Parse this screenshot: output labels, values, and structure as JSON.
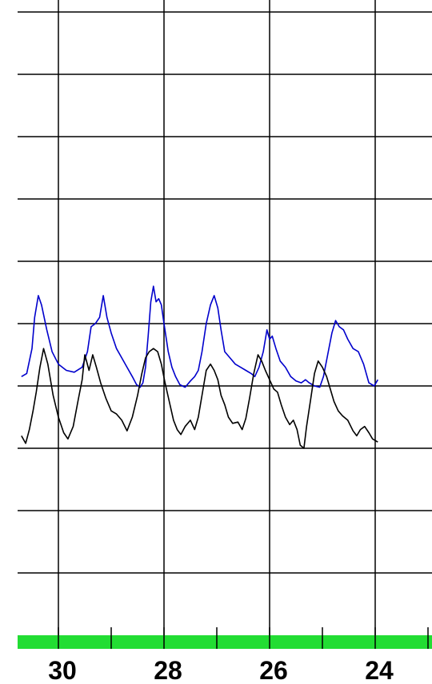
{
  "chart_data": {
    "type": "line",
    "title": "",
    "xlabel": "",
    "ylabel": "",
    "x_ticks": [
      30,
      28,
      26,
      24
    ],
    "x_axis_reversed": true,
    "grid": true,
    "colors": {
      "series_blue": "#0000cc",
      "series_black": "#000000",
      "grid": "#000000",
      "axis_bar": "#22dd33"
    },
    "series": [
      {
        "color": "#0000cc",
        "points": [
          [
            30.7,
            4.15
          ],
          [
            30.6,
            4.2
          ],
          [
            30.5,
            4.6
          ],
          [
            30.45,
            5.1
          ],
          [
            30.38,
            5.45
          ],
          [
            30.32,
            5.3
          ],
          [
            30.22,
            4.9
          ],
          [
            30.12,
            4.55
          ],
          [
            30.0,
            4.35
          ],
          [
            29.85,
            4.25
          ],
          [
            29.7,
            4.22
          ],
          [
            29.55,
            4.3
          ],
          [
            29.45,
            4.55
          ],
          [
            29.38,
            4.95
          ],
          [
            29.3,
            5.0
          ],
          [
            29.22,
            5.1
          ],
          [
            29.15,
            5.45
          ],
          [
            29.08,
            5.1
          ],
          [
            29.0,
            4.85
          ],
          [
            28.9,
            4.6
          ],
          [
            28.8,
            4.45
          ],
          [
            28.7,
            4.3
          ],
          [
            28.6,
            4.15
          ],
          [
            28.52,
            4.02
          ],
          [
            28.45,
            3.98
          ],
          [
            28.4,
            4.05
          ],
          [
            28.35,
            4.3
          ],
          [
            28.3,
            4.8
          ],
          [
            28.25,
            5.35
          ],
          [
            28.2,
            5.6
          ],
          [
            28.15,
            5.35
          ],
          [
            28.1,
            5.4
          ],
          [
            28.05,
            5.3
          ],
          [
            28.0,
            5.0
          ],
          [
            27.92,
            4.55
          ],
          [
            27.85,
            4.3
          ],
          [
            27.78,
            4.15
          ],
          [
            27.7,
            4.02
          ],
          [
            27.6,
            3.98
          ],
          [
            27.5,
            4.08
          ],
          [
            27.42,
            4.15
          ],
          [
            27.35,
            4.25
          ],
          [
            27.28,
            4.55
          ],
          [
            27.2,
            5.0
          ],
          [
            27.12,
            5.3
          ],
          [
            27.05,
            5.45
          ],
          [
            26.98,
            5.25
          ],
          [
            26.92,
            4.9
          ],
          [
            26.85,
            4.55
          ],
          [
            26.75,
            4.45
          ],
          [
            26.65,
            4.35
          ],
          [
            26.55,
            4.3
          ],
          [
            26.45,
            4.25
          ],
          [
            26.35,
            4.2
          ],
          [
            26.28,
            4.15
          ],
          [
            26.2,
            4.3
          ],
          [
            26.12,
            4.55
          ],
          [
            26.05,
            4.9
          ],
          [
            26.0,
            4.75
          ],
          [
            25.95,
            4.8
          ],
          [
            25.88,
            4.6
          ],
          [
            25.8,
            4.4
          ],
          [
            25.7,
            4.3
          ],
          [
            25.6,
            4.15
          ],
          [
            25.5,
            4.08
          ],
          [
            25.4,
            4.05
          ],
          [
            25.32,
            4.1
          ],
          [
            25.25,
            4.05
          ],
          [
            25.15,
            4.0
          ],
          [
            25.05,
            3.98
          ],
          [
            24.98,
            4.15
          ],
          [
            24.9,
            4.5
          ],
          [
            24.82,
            4.85
          ],
          [
            24.75,
            5.05
          ],
          [
            24.68,
            4.95
          ],
          [
            24.6,
            4.9
          ],
          [
            24.52,
            4.75
          ],
          [
            24.42,
            4.6
          ],
          [
            24.32,
            4.55
          ],
          [
            24.22,
            4.35
          ],
          [
            24.12,
            4.05
          ],
          [
            24.02,
            4.0
          ],
          [
            23.95,
            4.1
          ]
        ]
      },
      {
        "color": "#000000",
        "points": [
          [
            30.7,
            3.2
          ],
          [
            30.62,
            3.08
          ],
          [
            30.55,
            3.3
          ],
          [
            30.48,
            3.6
          ],
          [
            30.42,
            3.9
          ],
          [
            30.35,
            4.3
          ],
          [
            30.28,
            4.6
          ],
          [
            30.2,
            4.35
          ],
          [
            30.1,
            3.85
          ],
          [
            30.0,
            3.5
          ],
          [
            29.9,
            3.25
          ],
          [
            29.82,
            3.15
          ],
          [
            29.72,
            3.35
          ],
          [
            29.62,
            3.8
          ],
          [
            29.55,
            4.1
          ],
          [
            29.5,
            4.5
          ],
          [
            29.42,
            4.25
          ],
          [
            29.35,
            4.5
          ],
          [
            29.28,
            4.3
          ],
          [
            29.2,
            4.05
          ],
          [
            29.1,
            3.8
          ],
          [
            29.0,
            3.6
          ],
          [
            28.9,
            3.55
          ],
          [
            28.8,
            3.45
          ],
          [
            28.7,
            3.28
          ],
          [
            28.6,
            3.5
          ],
          [
            28.5,
            3.85
          ],
          [
            28.42,
            4.2
          ],
          [
            28.35,
            4.45
          ],
          [
            28.28,
            4.55
          ],
          [
            28.2,
            4.6
          ],
          [
            28.12,
            4.55
          ],
          [
            28.05,
            4.35
          ],
          [
            27.98,
            4.05
          ],
          [
            27.9,
            3.75
          ],
          [
            27.82,
            3.45
          ],
          [
            27.75,
            3.3
          ],
          [
            27.68,
            3.22
          ],
          [
            27.6,
            3.35
          ],
          [
            27.5,
            3.45
          ],
          [
            27.42,
            3.3
          ],
          [
            27.35,
            3.5
          ],
          [
            27.28,
            3.85
          ],
          [
            27.2,
            4.25
          ],
          [
            27.12,
            4.35
          ],
          [
            27.05,
            4.25
          ],
          [
            26.98,
            4.1
          ],
          [
            26.92,
            3.85
          ],
          [
            26.85,
            3.7
          ],
          [
            26.78,
            3.5
          ],
          [
            26.7,
            3.4
          ],
          [
            26.6,
            3.42
          ],
          [
            26.52,
            3.3
          ],
          [
            26.45,
            3.48
          ],
          [
            26.38,
            3.8
          ],
          [
            26.3,
            4.2
          ],
          [
            26.22,
            4.5
          ],
          [
            26.15,
            4.4
          ],
          [
            26.08,
            4.25
          ],
          [
            26.0,
            4.1
          ],
          [
            25.92,
            3.95
          ],
          [
            25.85,
            3.9
          ],
          [
            25.78,
            3.7
          ],
          [
            25.7,
            3.5
          ],
          [
            25.62,
            3.38
          ],
          [
            25.55,
            3.45
          ],
          [
            25.48,
            3.3
          ],
          [
            25.42,
            3.05
          ],
          [
            25.35,
            3.0
          ],
          [
            25.3,
            3.35
          ],
          [
            25.22,
            3.8
          ],
          [
            25.15,
            4.2
          ],
          [
            25.08,
            4.4
          ],
          [
            25.0,
            4.3
          ],
          [
            24.92,
            4.15
          ],
          [
            24.85,
            3.95
          ],
          [
            24.78,
            3.75
          ],
          [
            24.7,
            3.6
          ],
          [
            24.62,
            3.52
          ],
          [
            24.52,
            3.45
          ],
          [
            24.42,
            3.28
          ],
          [
            24.35,
            3.2
          ],
          [
            24.28,
            3.3
          ],
          [
            24.2,
            3.35
          ],
          [
            24.12,
            3.25
          ],
          [
            24.05,
            3.15
          ],
          [
            23.95,
            3.1
          ]
        ]
      }
    ]
  }
}
